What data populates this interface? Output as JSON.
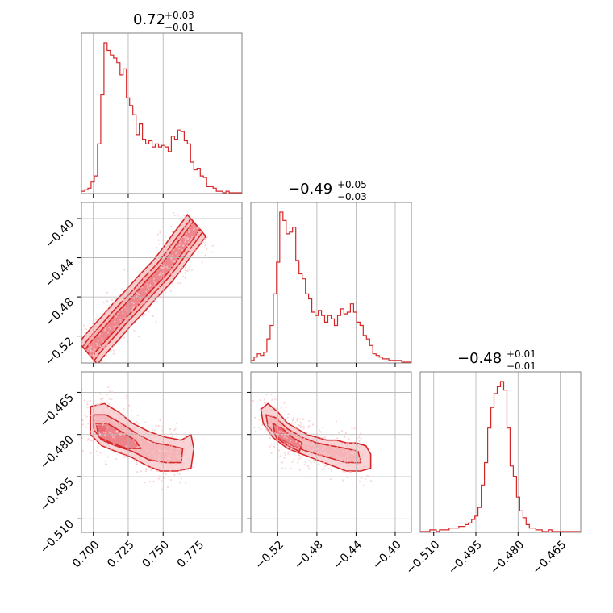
{
  "colors": {
    "line": "#d62728",
    "fill": "#f2a0a4",
    "fill_dark": "#e8636b",
    "points": "#f7c6c9",
    "grid": "#b0b0b0",
    "axes": "#808080"
  },
  "chart_data": {
    "type": "corner",
    "parameters": [
      {
        "index": 0,
        "title_value": "0.72",
        "title_plus": "+0.03",
        "title_minus": "−0.01",
        "range": [
          0.6915,
          0.8065
        ]
      },
      {
        "index": 1,
        "title_value": "−0.49",
        "title_plus": "+0.05",
        "title_minus": "−0.03",
        "range": [
          -0.5475,
          -0.3835
        ]
      },
      {
        "index": 2,
        "title_value": "−0.48",
        "title_plus": "+0.01",
        "title_minus": "−0.01",
        "range": [
          -0.5148,
          -0.4577
        ]
      }
    ],
    "ticks": {
      "p0": [
        {
          "v": 0.7,
          "label": "0.700"
        },
        {
          "v": 0.725,
          "label": "0.725"
        },
        {
          "v": 0.75,
          "label": "0.750"
        },
        {
          "v": 0.775,
          "label": "0.775"
        }
      ],
      "p1": [
        {
          "v": -0.52,
          "label": "−0.52"
        },
        {
          "v": -0.48,
          "label": "−0.48"
        },
        {
          "v": -0.44,
          "label": "−0.44"
        },
        {
          "v": -0.4,
          "label": "−0.40"
        }
      ],
      "p2": [
        {
          "v": -0.51,
          "label": "−0.510"
        },
        {
          "v": -0.495,
          "label": "−0.495"
        },
        {
          "v": -0.48,
          "label": "−0.480"
        },
        {
          "v": -0.465,
          "label": "−0.465"
        }
      ]
    },
    "histograms": {
      "p0": [
        1,
        2,
        3,
        7,
        11,
        32,
        64,
        98,
        93,
        90,
        88,
        85,
        77,
        81,
        62,
        57,
        51,
        38,
        45,
        35,
        32,
        34,
        30,
        32,
        30,
        31,
        30,
        27,
        37,
        35,
        41,
        40,
        34,
        32,
        20,
        15,
        16,
        11,
        10,
        4,
        4,
        3,
        1,
        1,
        0,
        1,
        0,
        0,
        0,
        0
      ],
      "p1": [
        1,
        3,
        5,
        4,
        6,
        14,
        22,
        41,
        60,
        90,
        85,
        77,
        78,
        81,
        61,
        53,
        50,
        41,
        38,
        30,
        28,
        31,
        28,
        24,
        28,
        26,
        22,
        28,
        32,
        29,
        30,
        35,
        30,
        24,
        22,
        16,
        14,
        10,
        5,
        4,
        3,
        2,
        2,
        1,
        1,
        1,
        1,
        0,
        0,
        0
      ],
      "p2": [
        0,
        0,
        0,
        1,
        1,
        0,
        1,
        1,
        1,
        2,
        2,
        2,
        3,
        3,
        4,
        5,
        7,
        9,
        14,
        27,
        40,
        60,
        72,
        80,
        84,
        87,
        82,
        60,
        38,
        32,
        20,
        12,
        8,
        4,
        2,
        2,
        1,
        1,
        0,
        0,
        1,
        0,
        0,
        0,
        0,
        0,
        0,
        0,
        0,
        0
      ]
    },
    "contours_2d": {
      "p1_vs_p0": {
        "ridge": [
          [
            0.6965,
            -0.538
          ],
          [
            0.7,
            -0.531
          ],
          [
            0.705,
            -0.523
          ],
          [
            0.712,
            -0.512
          ],
          [
            0.72,
            -0.499
          ],
          [
            0.73,
            -0.484
          ],
          [
            0.74,
            -0.468
          ],
          [
            0.75,
            -0.453
          ],
          [
            0.757,
            -0.44
          ],
          [
            0.763,
            -0.428
          ],
          [
            0.77,
            -0.415
          ],
          [
            0.774,
            -0.407
          ]
        ],
        "widths": [
          0.004,
          0.007,
          0.011
        ]
      },
      "p2_vs_p0": [
        [
          [
            0.698,
            -0.47
          ],
          [
            0.708,
            -0.469
          ],
          [
            0.718,
            -0.472
          ],
          [
            0.728,
            -0.476
          ],
          [
            0.74,
            -0.479
          ],
          [
            0.752,
            -0.481
          ],
          [
            0.763,
            -0.482
          ],
          [
            0.77,
            -0.48
          ],
          [
            0.772,
            -0.485
          ],
          [
            0.77,
            -0.492
          ],
          [
            0.76,
            -0.493
          ],
          [
            0.748,
            -0.493
          ],
          [
            0.738,
            -0.491
          ],
          [
            0.727,
            -0.488
          ],
          [
            0.716,
            -0.486
          ],
          [
            0.706,
            -0.484
          ],
          [
            0.698,
            -0.48
          ]
        ],
        [
          [
            0.7,
            -0.473
          ],
          [
            0.709,
            -0.473
          ],
          [
            0.72,
            -0.476
          ],
          [
            0.732,
            -0.48
          ],
          [
            0.744,
            -0.483
          ],
          [
            0.756,
            -0.484
          ],
          [
            0.764,
            -0.485
          ],
          [
            0.763,
            -0.49
          ],
          [
            0.752,
            -0.49
          ],
          [
            0.74,
            -0.489
          ],
          [
            0.728,
            -0.486
          ],
          [
            0.716,
            -0.484
          ],
          [
            0.706,
            -0.482
          ],
          [
            0.7,
            -0.478
          ]
        ],
        [
          [
            0.702,
            -0.476
          ],
          [
            0.71,
            -0.476
          ],
          [
            0.72,
            -0.479
          ],
          [
            0.73,
            -0.482
          ],
          [
            0.734,
            -0.485
          ],
          [
            0.724,
            -0.485
          ],
          [
            0.713,
            -0.483
          ],
          [
            0.704,
            -0.481
          ]
        ]
      ],
      "p2_vs_p1": [
        [
          [
            -0.5372,
            -0.471
          ],
          [
            -0.53,
            -0.469
          ],
          [
            -0.52,
            -0.472
          ],
          [
            -0.51,
            -0.476
          ],
          [
            -0.5,
            -0.478
          ],
          [
            -0.49,
            -0.48
          ],
          [
            -0.48,
            -0.481
          ],
          [
            -0.47,
            -0.482
          ],
          [
            -0.46,
            -0.482
          ],
          [
            -0.45,
            -0.483
          ],
          [
            -0.44,
            -0.483
          ],
          [
            -0.43,
            -0.484
          ],
          [
            -0.425,
            -0.487
          ],
          [
            -0.425,
            -0.492
          ],
          [
            -0.435,
            -0.493
          ],
          [
            -0.45,
            -0.493
          ],
          [
            -0.465,
            -0.491
          ],
          [
            -0.48,
            -0.489
          ],
          [
            -0.495,
            -0.487
          ],
          [
            -0.51,
            -0.485
          ],
          [
            -0.525,
            -0.481
          ],
          [
            -0.535,
            -0.476
          ]
        ],
        [
          [
            -0.532,
            -0.473
          ],
          [
            -0.522,
            -0.474
          ],
          [
            -0.51,
            -0.478
          ],
          [
            -0.495,
            -0.481
          ],
          [
            -0.48,
            -0.483
          ],
          [
            -0.465,
            -0.484
          ],
          [
            -0.45,
            -0.485
          ],
          [
            -0.438,
            -0.486
          ],
          [
            -0.435,
            -0.49
          ],
          [
            -0.45,
            -0.49
          ],
          [
            -0.47,
            -0.488
          ],
          [
            -0.49,
            -0.486
          ],
          [
            -0.505,
            -0.484
          ],
          [
            -0.52,
            -0.481
          ],
          [
            -0.53,
            -0.477
          ]
        ],
        [
          [
            -0.525,
            -0.476
          ],
          [
            -0.515,
            -0.478
          ],
          [
            -0.505,
            -0.481
          ],
          [
            -0.495,
            -0.483
          ],
          [
            -0.498,
            -0.486
          ],
          [
            -0.51,
            -0.484
          ],
          [
            -0.522,
            -0.481
          ]
        ]
      ]
    }
  }
}
